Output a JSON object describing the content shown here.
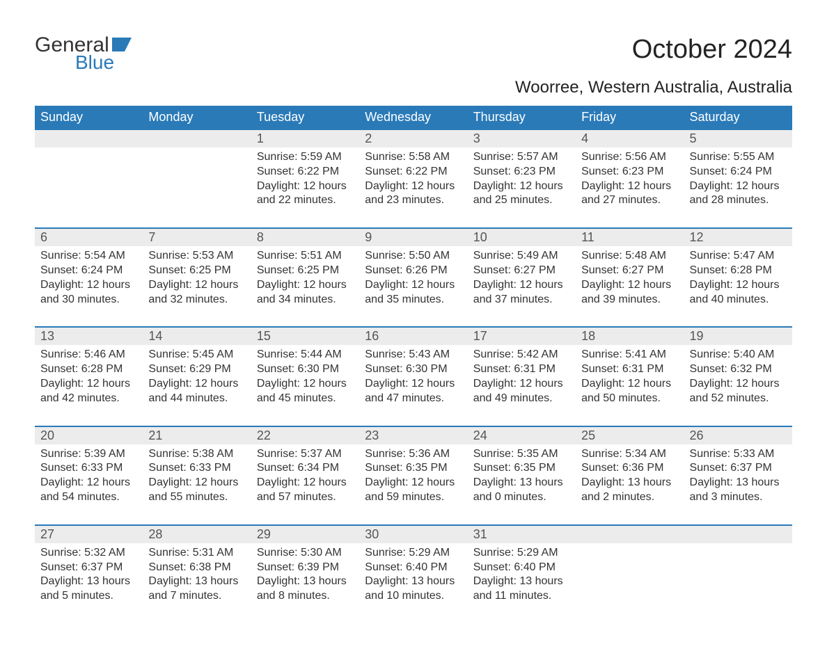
{
  "logo": {
    "part1": "General",
    "part2": "Blue"
  },
  "title": "October 2024",
  "location": "Woorree, Western Australia, Australia",
  "colors": {
    "header_bg": "#2a7ab8",
    "header_text": "#ffffff",
    "daynum_bg": "#ececec",
    "daynum_border": "#2a7ab8",
    "body_text": "#333333",
    "page_bg": "#ffffff",
    "logo_blue": "#2a7ab8"
  },
  "typography": {
    "title_fontsize": 38,
    "location_fontsize": 24,
    "header_fontsize": 18,
    "daynum_fontsize": 18,
    "cell_fontsize": 16,
    "font_family": "Arial"
  },
  "calendar": {
    "type": "table",
    "columns": [
      "Sunday",
      "Monday",
      "Tuesday",
      "Wednesday",
      "Thursday",
      "Friday",
      "Saturday"
    ],
    "weeks": [
      [
        null,
        null,
        {
          "day": "1",
          "sunrise": "Sunrise: 5:59 AM",
          "sunset": "Sunset: 6:22 PM",
          "daylight1": "Daylight: 12 hours",
          "daylight2": "and 22 minutes."
        },
        {
          "day": "2",
          "sunrise": "Sunrise: 5:58 AM",
          "sunset": "Sunset: 6:22 PM",
          "daylight1": "Daylight: 12 hours",
          "daylight2": "and 23 minutes."
        },
        {
          "day": "3",
          "sunrise": "Sunrise: 5:57 AM",
          "sunset": "Sunset: 6:23 PM",
          "daylight1": "Daylight: 12 hours",
          "daylight2": "and 25 minutes."
        },
        {
          "day": "4",
          "sunrise": "Sunrise: 5:56 AM",
          "sunset": "Sunset: 6:23 PM",
          "daylight1": "Daylight: 12 hours",
          "daylight2": "and 27 minutes."
        },
        {
          "day": "5",
          "sunrise": "Sunrise: 5:55 AM",
          "sunset": "Sunset: 6:24 PM",
          "daylight1": "Daylight: 12 hours",
          "daylight2": "and 28 minutes."
        }
      ],
      [
        {
          "day": "6",
          "sunrise": "Sunrise: 5:54 AM",
          "sunset": "Sunset: 6:24 PM",
          "daylight1": "Daylight: 12 hours",
          "daylight2": "and 30 minutes."
        },
        {
          "day": "7",
          "sunrise": "Sunrise: 5:53 AM",
          "sunset": "Sunset: 6:25 PM",
          "daylight1": "Daylight: 12 hours",
          "daylight2": "and 32 minutes."
        },
        {
          "day": "8",
          "sunrise": "Sunrise: 5:51 AM",
          "sunset": "Sunset: 6:25 PM",
          "daylight1": "Daylight: 12 hours",
          "daylight2": "and 34 minutes."
        },
        {
          "day": "9",
          "sunrise": "Sunrise: 5:50 AM",
          "sunset": "Sunset: 6:26 PM",
          "daylight1": "Daylight: 12 hours",
          "daylight2": "and 35 minutes."
        },
        {
          "day": "10",
          "sunrise": "Sunrise: 5:49 AM",
          "sunset": "Sunset: 6:27 PM",
          "daylight1": "Daylight: 12 hours",
          "daylight2": "and 37 minutes."
        },
        {
          "day": "11",
          "sunrise": "Sunrise: 5:48 AM",
          "sunset": "Sunset: 6:27 PM",
          "daylight1": "Daylight: 12 hours",
          "daylight2": "and 39 minutes."
        },
        {
          "day": "12",
          "sunrise": "Sunrise: 5:47 AM",
          "sunset": "Sunset: 6:28 PM",
          "daylight1": "Daylight: 12 hours",
          "daylight2": "and 40 minutes."
        }
      ],
      [
        {
          "day": "13",
          "sunrise": "Sunrise: 5:46 AM",
          "sunset": "Sunset: 6:28 PM",
          "daylight1": "Daylight: 12 hours",
          "daylight2": "and 42 minutes."
        },
        {
          "day": "14",
          "sunrise": "Sunrise: 5:45 AM",
          "sunset": "Sunset: 6:29 PM",
          "daylight1": "Daylight: 12 hours",
          "daylight2": "and 44 minutes."
        },
        {
          "day": "15",
          "sunrise": "Sunrise: 5:44 AM",
          "sunset": "Sunset: 6:30 PM",
          "daylight1": "Daylight: 12 hours",
          "daylight2": "and 45 minutes."
        },
        {
          "day": "16",
          "sunrise": "Sunrise: 5:43 AM",
          "sunset": "Sunset: 6:30 PM",
          "daylight1": "Daylight: 12 hours",
          "daylight2": "and 47 minutes."
        },
        {
          "day": "17",
          "sunrise": "Sunrise: 5:42 AM",
          "sunset": "Sunset: 6:31 PM",
          "daylight1": "Daylight: 12 hours",
          "daylight2": "and 49 minutes."
        },
        {
          "day": "18",
          "sunrise": "Sunrise: 5:41 AM",
          "sunset": "Sunset: 6:31 PM",
          "daylight1": "Daylight: 12 hours",
          "daylight2": "and 50 minutes."
        },
        {
          "day": "19",
          "sunrise": "Sunrise: 5:40 AM",
          "sunset": "Sunset: 6:32 PM",
          "daylight1": "Daylight: 12 hours",
          "daylight2": "and 52 minutes."
        }
      ],
      [
        {
          "day": "20",
          "sunrise": "Sunrise: 5:39 AM",
          "sunset": "Sunset: 6:33 PM",
          "daylight1": "Daylight: 12 hours",
          "daylight2": "and 54 minutes."
        },
        {
          "day": "21",
          "sunrise": "Sunrise: 5:38 AM",
          "sunset": "Sunset: 6:33 PM",
          "daylight1": "Daylight: 12 hours",
          "daylight2": "and 55 minutes."
        },
        {
          "day": "22",
          "sunrise": "Sunrise: 5:37 AM",
          "sunset": "Sunset: 6:34 PM",
          "daylight1": "Daylight: 12 hours",
          "daylight2": "and 57 minutes."
        },
        {
          "day": "23",
          "sunrise": "Sunrise: 5:36 AM",
          "sunset": "Sunset: 6:35 PM",
          "daylight1": "Daylight: 12 hours",
          "daylight2": "and 59 minutes."
        },
        {
          "day": "24",
          "sunrise": "Sunrise: 5:35 AM",
          "sunset": "Sunset: 6:35 PM",
          "daylight1": "Daylight: 13 hours",
          "daylight2": "and 0 minutes."
        },
        {
          "day": "25",
          "sunrise": "Sunrise: 5:34 AM",
          "sunset": "Sunset: 6:36 PM",
          "daylight1": "Daylight: 13 hours",
          "daylight2": "and 2 minutes."
        },
        {
          "day": "26",
          "sunrise": "Sunrise: 5:33 AM",
          "sunset": "Sunset: 6:37 PM",
          "daylight1": "Daylight: 13 hours",
          "daylight2": "and 3 minutes."
        }
      ],
      [
        {
          "day": "27",
          "sunrise": "Sunrise: 5:32 AM",
          "sunset": "Sunset: 6:37 PM",
          "daylight1": "Daylight: 13 hours",
          "daylight2": "and 5 minutes."
        },
        {
          "day": "28",
          "sunrise": "Sunrise: 5:31 AM",
          "sunset": "Sunset: 6:38 PM",
          "daylight1": "Daylight: 13 hours",
          "daylight2": "and 7 minutes."
        },
        {
          "day": "29",
          "sunrise": "Sunrise: 5:30 AM",
          "sunset": "Sunset: 6:39 PM",
          "daylight1": "Daylight: 13 hours",
          "daylight2": "and 8 minutes."
        },
        {
          "day": "30",
          "sunrise": "Sunrise: 5:29 AM",
          "sunset": "Sunset: 6:40 PM",
          "daylight1": "Daylight: 13 hours",
          "daylight2": "and 10 minutes."
        },
        {
          "day": "31",
          "sunrise": "Sunrise: 5:29 AM",
          "sunset": "Sunset: 6:40 PM",
          "daylight1": "Daylight: 13 hours",
          "daylight2": "and 11 minutes."
        },
        null,
        null
      ]
    ]
  }
}
